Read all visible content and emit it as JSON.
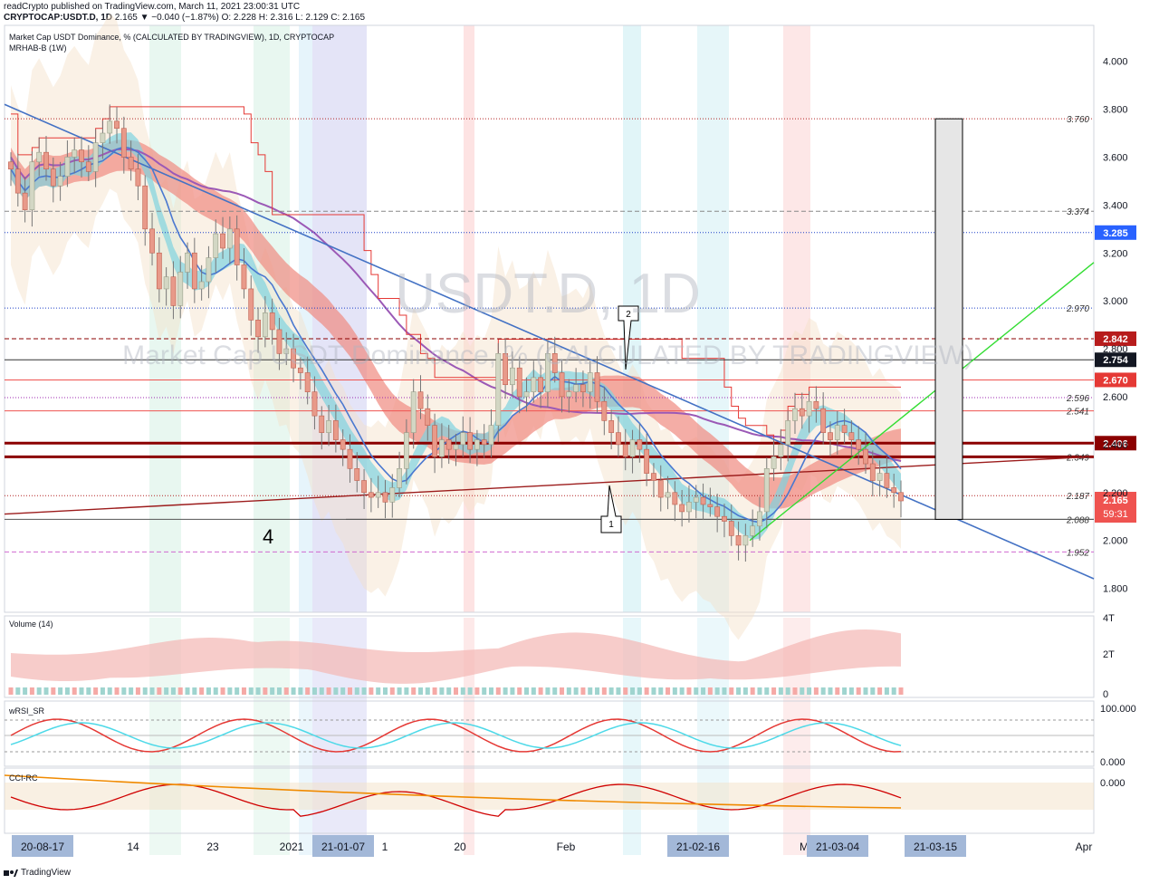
{
  "header": {
    "line1": "readCrypto published on TradingView.com, March 11, 2021 23:00:31 UTC",
    "symbol": "CRYPTOCAP:USDT.D, 1D",
    "last": "2.165",
    "change": "▼ −0.040 (−1.87%)",
    "ohlc": "O: 2.228  H: 2.316  L: 2.129  C: 2.165"
  },
  "panes": {
    "main_title": "Market Cap USDT Dominance, % (CALCULATED BY TRADINGVIEW), 1D, CRYPTOCAP",
    "main_indicator": "MRHAB-B (1W)",
    "watermark_big": "USDT.D, 1D",
    "watermark_small": "Market Cap USDT Dominance, % (CALCULATED BY TRADINGVIEW)",
    "volume": "Volume (14)",
    "rsi": "wRSI_SR",
    "cci": "CCI-RC"
  },
  "annotations": {
    "wave4": "4",
    "point1": "1",
    "point2": "2"
  },
  "footer": {
    "brand": "TradingView"
  },
  "colors": {
    "up": "#26a69a",
    "down": "#ef5350",
    "up_light": "#f5c9a0",
    "trend_blue": "#4472c4",
    "trend_dark": "#9c1c1c",
    "trend_green": "#33dd33",
    "ma_purple": "#9b59b6"
  },
  "chart_data": {
    "type": "candlestick",
    "title": "Market Cap USDT Dominance, % (CALCULATED BY TRADINGVIEW), 1D, CRYPTOCAP",
    "ylim": [
      1.7,
      4.15
    ],
    "y_ticks": [
      "4.000",
      "3.800",
      "3.600",
      "3.400",
      "3.200",
      "3.000",
      "2.800",
      "2.600",
      "2.400",
      "2.200",
      "2.000",
      "1.800"
    ],
    "x_ticks": [
      "20-08-17",
      "14",
      "23",
      "2021",
      "21-01-07",
      "1",
      "20",
      "Feb",
      "21-02-16",
      "M",
      "21-03-04",
      "21-03-15",
      "Apr"
    ],
    "levels": [
      {
        "label": "3.760",
        "value": 3.76,
        "style": "dotted",
        "color": "#b22222"
      },
      {
        "label": "3.374",
        "value": 3.374,
        "style": "dashed",
        "color": "#888888"
      },
      {
        "label": "3.285",
        "value": 3.285,
        "style": "dotted",
        "color": "#1e40c8",
        "badge": true,
        "badge_color": "#2962ff"
      },
      {
        "label": "2.970",
        "value": 2.97,
        "style": "dotted",
        "color": "#1e40c8"
      },
      {
        "label": "2.842",
        "value": 2.842,
        "style": "dashed",
        "color": "#8b0000",
        "badge": true,
        "badge_color": "#b71c1c"
      },
      {
        "label": "2.754",
        "value": 2.754,
        "style": "solid",
        "color": "#333333",
        "badge": true,
        "badge_color": "#131722"
      },
      {
        "label": "2.670",
        "value": 2.67,
        "style": "solid",
        "color": "#ef5350",
        "badge": true,
        "badge_color": "#e53935"
      },
      {
        "label": "2.596",
        "value": 2.596,
        "style": "dotted",
        "color": "#9c27b0"
      },
      {
        "label": "2.541",
        "value": 2.541,
        "style": "solid",
        "color": "#ef5350"
      },
      {
        "label": "2.406",
        "value": 2.406,
        "style": "thick",
        "color": "#8b0000",
        "badge": true,
        "badge_color": "#8b0000"
      },
      {
        "label": "2.349",
        "value": 2.349,
        "style": "thick",
        "color": "#8b0000"
      },
      {
        "label": "2.187",
        "value": 2.187,
        "style": "dotted",
        "color": "#b22222"
      },
      {
        "label": "2.088",
        "value": 2.088,
        "style": "solid",
        "color": "#555555"
      },
      {
        "label": "1.952",
        "value": 1.952,
        "style": "dashed",
        "color": "#d06ad0"
      }
    ],
    "last_price": {
      "value": 2.165,
      "label": "2.165",
      "countdown": "59:31"
    },
    "closes": [
      3.55,
      3.45,
      3.38,
      3.58,
      3.62,
      3.55,
      3.48,
      3.52,
      3.6,
      3.63,
      3.58,
      3.54,
      3.66,
      3.7,
      3.75,
      3.72,
      3.6,
      3.55,
      3.48,
      3.3,
      3.2,
      3.05,
      3.1,
      2.98,
      3.12,
      3.2,
      3.05,
      3.08,
      3.18,
      3.28,
      3.22,
      3.3,
      3.15,
      3.05,
      2.92,
      2.85,
      2.95,
      2.88,
      2.78,
      2.8,
      2.72,
      2.7,
      2.62,
      2.52,
      2.45,
      2.5,
      2.42,
      2.38,
      2.3,
      2.25,
      2.2,
      2.18,
      2.2,
      2.16,
      2.22,
      2.3,
      2.45,
      2.62,
      2.55,
      2.48,
      2.35,
      2.42,
      2.38,
      2.4,
      2.45,
      2.38,
      2.42,
      2.4,
      2.48,
      2.78,
      2.65,
      2.72,
      2.6,
      2.62,
      2.68,
      2.62,
      2.78,
      2.7,
      2.6,
      2.62,
      2.65,
      2.62,
      2.7,
      2.58,
      2.5,
      2.45,
      2.4,
      2.35,
      2.42,
      2.38,
      2.28,
      2.25,
      2.18,
      2.2,
      2.15,
      2.12,
      2.16,
      2.18,
      2.15,
      2.14,
      2.1,
      2.08,
      2.02,
      1.98,
      2.02,
      2.06,
      2.12,
      2.3,
      2.35,
      2.4,
      2.5,
      2.55,
      2.52,
      2.58,
      2.55,
      2.45,
      2.42,
      2.48,
      2.45,
      2.42,
      2.38,
      2.32,
      2.25,
      2.28,
      2.22,
      2.2,
      2.165
    ]
  }
}
